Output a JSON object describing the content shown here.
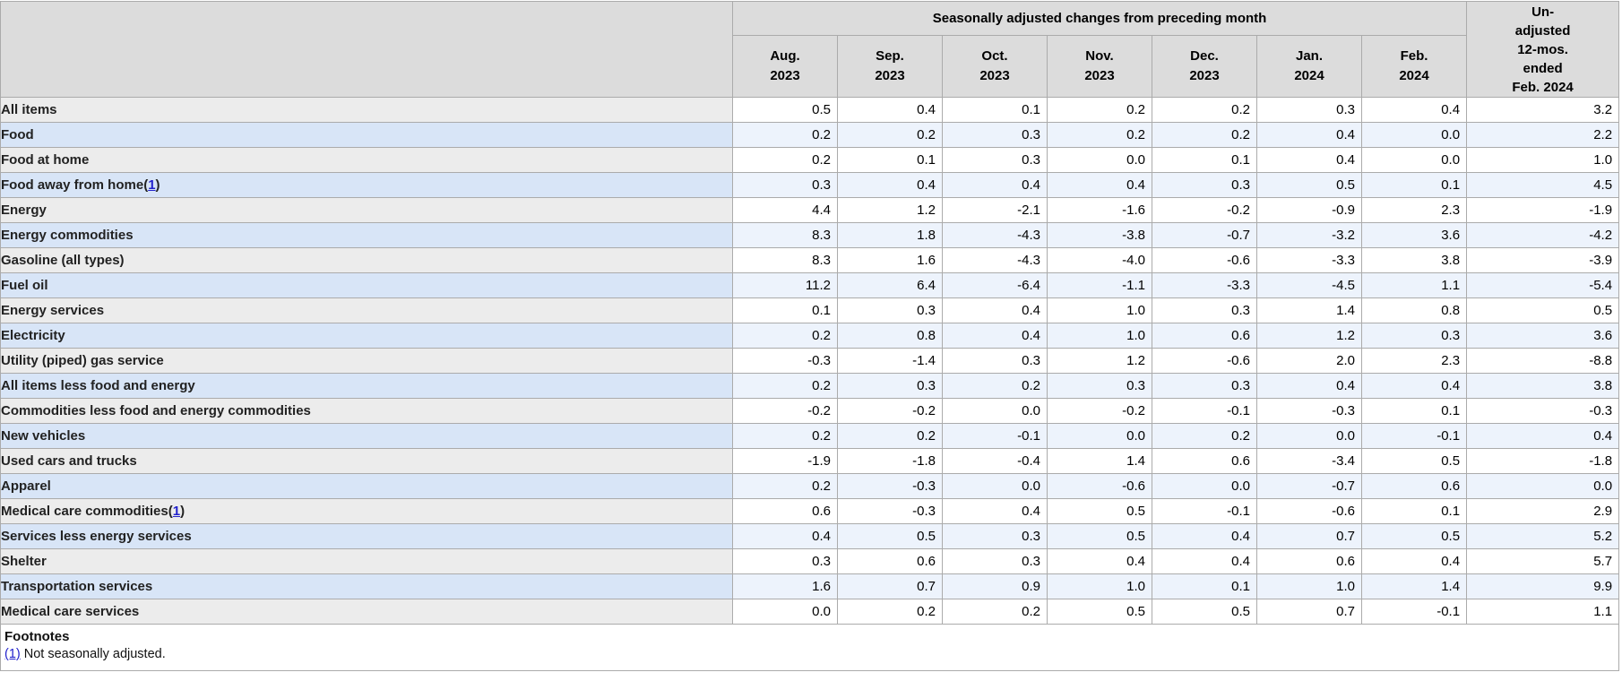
{
  "colors": {
    "header_bg": "#dcdcdc",
    "row_gray": "#ececec",
    "row_blue": "#d8e5f7",
    "row_blue_light": "#edf3fc",
    "link": "#2222cc",
    "border": "#ababab",
    "border_outer": "#9e9e9e"
  },
  "table": {
    "group_header": "Seasonally adjusted changes from preceding month",
    "months": [
      {
        "label": "Aug.",
        "year": "2023"
      },
      {
        "label": "Sep.",
        "year": "2023"
      },
      {
        "label": "Oct.",
        "year": "2023"
      },
      {
        "label": "Nov.",
        "year": "2023"
      },
      {
        "label": "Dec.",
        "year": "2023"
      },
      {
        "label": "Jan.",
        "year": "2024"
      },
      {
        "label": "Feb.",
        "year": "2024"
      }
    ],
    "unadjusted_header_lines": [
      "Un-",
      "adjusted",
      "12-mos.",
      "ended",
      "Feb. 2024"
    ]
  },
  "chart_data": {
    "type": "table",
    "group_header": "Seasonally adjusted changes from preceding month",
    "columns": [
      "Aug. 2023",
      "Sep. 2023",
      "Oct. 2023",
      "Nov. 2023",
      "Dec. 2023",
      "Jan. 2024",
      "Feb. 2024",
      "Unadjusted 12-mos. ended Feb. 2024"
    ],
    "rows": [
      {
        "label": "All items",
        "indent": 0,
        "footnote": null,
        "values": [
          0.5,
          0.4,
          0.1,
          0.2,
          0.2,
          0.3,
          0.4,
          3.2
        ]
      },
      {
        "label": "Food",
        "indent": 1,
        "footnote": null,
        "values": [
          0.2,
          0.2,
          0.3,
          0.2,
          0.2,
          0.4,
          0.0,
          2.2
        ]
      },
      {
        "label": "Food at home",
        "indent": 2,
        "footnote": null,
        "values": [
          0.2,
          0.1,
          0.3,
          0.0,
          0.1,
          0.4,
          0.0,
          1.0
        ]
      },
      {
        "label": "Food away from home",
        "indent": 2,
        "footnote": "1",
        "values": [
          0.3,
          0.4,
          0.4,
          0.4,
          0.3,
          0.5,
          0.1,
          4.5
        ]
      },
      {
        "label": "Energy",
        "indent": 1,
        "footnote": null,
        "values": [
          4.4,
          1.2,
          -2.1,
          -1.6,
          -0.2,
          -0.9,
          2.3,
          -1.9
        ]
      },
      {
        "label": "Energy commodities",
        "indent": 2,
        "footnote": null,
        "values": [
          8.3,
          1.8,
          -4.3,
          -3.8,
          -0.7,
          -3.2,
          3.6,
          -4.2
        ]
      },
      {
        "label": "Gasoline (all types)",
        "indent": 3,
        "footnote": null,
        "values": [
          8.3,
          1.6,
          -4.3,
          -4.0,
          -0.6,
          -3.3,
          3.8,
          -3.9
        ]
      },
      {
        "label": "Fuel oil",
        "indent": 3,
        "footnote": null,
        "values": [
          11.2,
          6.4,
          -6.4,
          -1.1,
          -3.3,
          -4.5,
          1.1,
          -5.4
        ]
      },
      {
        "label": "Energy services",
        "indent": 2,
        "footnote": null,
        "values": [
          0.1,
          0.3,
          0.4,
          1.0,
          0.3,
          1.4,
          0.8,
          0.5
        ]
      },
      {
        "label": "Electricity",
        "indent": 3,
        "footnote": null,
        "values": [
          0.2,
          0.8,
          0.4,
          1.0,
          0.6,
          1.2,
          0.3,
          3.6
        ]
      },
      {
        "label": "Utility (piped) gas service",
        "indent": 3,
        "footnote": null,
        "values": [
          -0.3,
          -1.4,
          0.3,
          1.2,
          -0.6,
          2.0,
          2.3,
          -8.8
        ]
      },
      {
        "label": "All items less food and energy",
        "indent": 1,
        "footnote": null,
        "values": [
          0.2,
          0.3,
          0.2,
          0.3,
          0.3,
          0.4,
          0.4,
          3.8
        ]
      },
      {
        "label": "Commodities less food and energy commodities",
        "indent": 2,
        "footnote": null,
        "values": [
          -0.2,
          -0.2,
          0.0,
          -0.2,
          -0.1,
          -0.3,
          0.1,
          -0.3
        ]
      },
      {
        "label": "New vehicles",
        "indent": 3,
        "footnote": null,
        "values": [
          0.2,
          0.2,
          -0.1,
          0.0,
          0.2,
          0.0,
          -0.1,
          0.4
        ]
      },
      {
        "label": "Used cars and trucks",
        "indent": 3,
        "footnote": null,
        "values": [
          -1.9,
          -1.8,
          -0.4,
          1.4,
          0.6,
          -3.4,
          0.5,
          -1.8
        ]
      },
      {
        "label": "Apparel",
        "indent": 3,
        "footnote": null,
        "values": [
          0.2,
          -0.3,
          0.0,
          -0.6,
          0.0,
          -0.7,
          0.6,
          0.0
        ]
      },
      {
        "label": "Medical care commodities",
        "indent": 3,
        "footnote": "1",
        "values": [
          0.6,
          -0.3,
          0.4,
          0.5,
          -0.1,
          -0.6,
          0.1,
          2.9
        ]
      },
      {
        "label": "Services less energy services",
        "indent": 2,
        "footnote": null,
        "values": [
          0.4,
          0.5,
          0.3,
          0.5,
          0.4,
          0.7,
          0.5,
          5.2
        ]
      },
      {
        "label": "Shelter",
        "indent": 3,
        "footnote": null,
        "values": [
          0.3,
          0.6,
          0.3,
          0.4,
          0.4,
          0.6,
          0.4,
          5.7
        ]
      },
      {
        "label": "Transportation services",
        "indent": 3,
        "footnote": null,
        "values": [
          1.6,
          0.7,
          0.9,
          1.0,
          0.1,
          1.0,
          1.4,
          9.9
        ]
      },
      {
        "label": "Medical care services",
        "indent": 3,
        "footnote": null,
        "values": [
          0.0,
          0.2,
          0.2,
          0.5,
          0.5,
          0.7,
          -0.1,
          1.1
        ]
      }
    ]
  },
  "footnotes": {
    "title": "Footnotes",
    "wrap": [
      "(",
      ")"
    ],
    "items": [
      {
        "marker_display": "(1)",
        "text": "Not seasonally adjusted."
      }
    ]
  }
}
